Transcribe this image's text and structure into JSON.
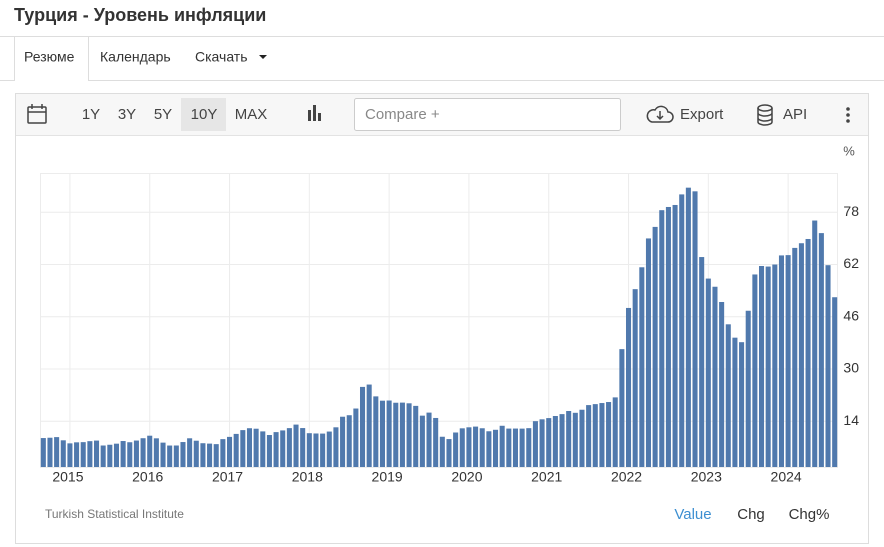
{
  "ui": {
    "title": "Турция - Уровень инфляции",
    "tabs": [
      "Резюме",
      "Календарь",
      "Скачать"
    ],
    "ranges": [
      "1Y",
      "3Y",
      "5Y",
      "10Y",
      "MAX"
    ],
    "compare": "Compare +",
    "export": "Export",
    "api": "API",
    "source": "Turkish Statistical Institute",
    "modes": [
      "Value",
      "Chg",
      "Chg%"
    ]
  },
  "chart_data": {
    "type": "bar",
    "y_label": "%",
    "color": "#5079ad",
    "grid": true,
    "categories": [
      null,
      null,
      null,
      null,
      "2015",
      null,
      null,
      null,
      null,
      null,
      null,
      null,
      null,
      null,
      null,
      null,
      "2016",
      null,
      null,
      null,
      null,
      null,
      null,
      null,
      null,
      null,
      null,
      null,
      "2017",
      null,
      null,
      null,
      null,
      null,
      null,
      null,
      null,
      null,
      null,
      null,
      "2018",
      null,
      null,
      null,
      null,
      null,
      null,
      null,
      null,
      null,
      null,
      null,
      "2019",
      null,
      null,
      null,
      null,
      null,
      null,
      null,
      null,
      null,
      null,
      null,
      "2020",
      null,
      null,
      null,
      null,
      null,
      null,
      null,
      null,
      null,
      null,
      null,
      "2021",
      null,
      null,
      null,
      null,
      null,
      null,
      null,
      null,
      null,
      null,
      null,
      "2022",
      null,
      null,
      null,
      null,
      null,
      null,
      null,
      null,
      null,
      null,
      null,
      "2023",
      null,
      null,
      null,
      null,
      null,
      null,
      null,
      null,
      null,
      null,
      null,
      "2024",
      null,
      null,
      null,
      null,
      null,
      null,
      null
    ],
    "values": [
      8.86,
      8.96,
      9.15,
      8.17,
      7.24,
      7.55,
      7.61,
      7.91,
      8.09,
      6.58,
      6.81,
      7.14,
      7.95,
      7.58,
      8.1,
      8.81,
      9.58,
      8.78,
      7.46,
      6.57,
      6.58,
      7.64,
      8.79,
      8.05,
      7.28,
      7.16,
      7.0,
      8.53,
      9.22,
      10.13,
      11.29,
      11.87,
      11.72,
      10.9,
      9.79,
      10.68,
      11.2,
      11.9,
      12.98,
      11.92,
      10.35,
      10.26,
      10.23,
      10.85,
      12.15,
      15.39,
      15.85,
      17.9,
      24.52,
      25.24,
      21.62,
      20.3,
      20.35,
      19.67,
      19.71,
      19.5,
      18.71,
      15.72,
      16.65,
      15.01,
      9.26,
      8.55,
      10.56,
      11.84,
      12.15,
      12.37,
      11.86,
      10.94,
      11.39,
      12.62,
      11.76,
      11.77,
      11.75,
      11.89,
      14.03,
      14.6,
      14.97,
      15.61,
      16.19,
      17.14,
      16.59,
      17.53,
      18.95,
      19.25,
      19.58,
      19.89,
      21.31,
      36.08,
      48.69,
      54.44,
      61.14,
      69.97,
      73.5,
      78.62,
      79.6,
      80.21,
      83.45,
      85.51,
      84.39,
      64.27,
      57.68,
      55.18,
      50.51,
      43.68,
      39.59,
      38.21,
      47.83,
      58.94,
      61.53,
      61.36,
      61.98,
      64.77,
      64.86,
      67.07,
      68.5,
      69.8,
      75.45,
      71.6,
      61.78,
      51.97
    ],
    "ylim": [
      0,
      90
    ],
    "yticks": [
      14,
      30,
      46,
      62,
      78
    ]
  }
}
